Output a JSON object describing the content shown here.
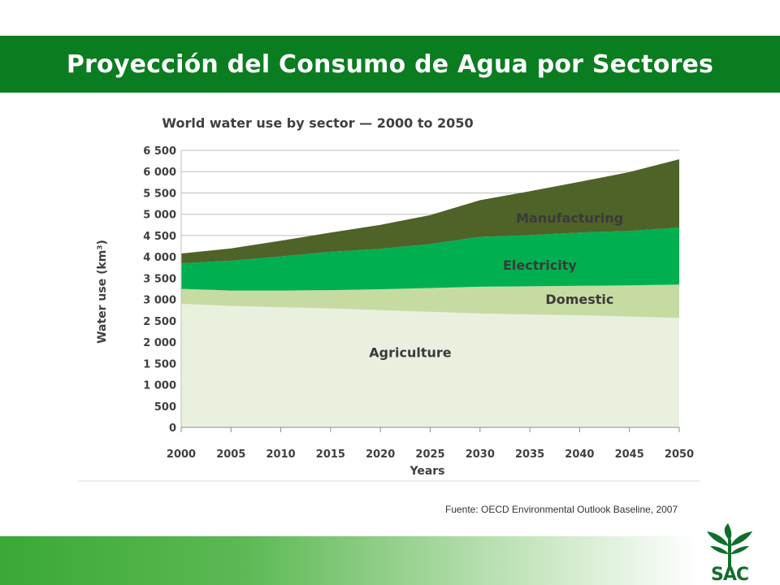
{
  "slide": {
    "title": "Proyección del Consumo de Agua por Sectores",
    "source": "Fuente: OECD Environmental Outlook  Baseline, 2007"
  },
  "logo": {
    "text": "SAC",
    "icon": "sugarcane-leaves-icon",
    "color": "#0f6f2a"
  },
  "chart_data": {
    "type": "area",
    "stacked": true,
    "title": "World water use by sector — 2000 to 2050",
    "xlabel": "Years",
    "ylabel": "Water use (km³)",
    "x": [
      2000,
      2005,
      2010,
      2015,
      2020,
      2025,
      2030,
      2035,
      2040,
      2045,
      2050
    ],
    "ylim": [
      0,
      6500
    ],
    "yticks": [
      0,
      500,
      1000,
      1500,
      2000,
      2500,
      3000,
      3500,
      4000,
      4500,
      5000,
      5500,
      6000,
      6500
    ],
    "ytick_labels": [
      "0",
      "500",
      "1 000",
      "1 500",
      "2 000",
      "2 500",
      "3 000",
      "3 500",
      "4 000",
      "4 500",
      "5 000",
      "5 500",
      "6 000",
      "6 500"
    ],
    "grid": true,
    "series": [
      {
        "name": "Agriculture",
        "color": "#eaf0de",
        "values": [
          2900,
          2850,
          2820,
          2790,
          2750,
          2710,
          2670,
          2650,
          2630,
          2600,
          2570
        ]
      },
      {
        "name": "Domestic",
        "color": "#c6dba2",
        "values": [
          350,
          360,
          390,
          430,
          490,
          560,
          630,
          660,
          690,
          730,
          780
        ]
      },
      {
        "name": "Electricity",
        "color": "#00b050",
        "values": [
          600,
          700,
          800,
          900,
          950,
          1030,
          1170,
          1200,
          1250,
          1280,
          1340
        ]
      },
      {
        "name": "Manufacturing",
        "color": "#4f6228",
        "values": [
          230,
          290,
          370,
          450,
          560,
          680,
          860,
          1030,
          1190,
          1380,
          1600
        ]
      }
    ]
  }
}
